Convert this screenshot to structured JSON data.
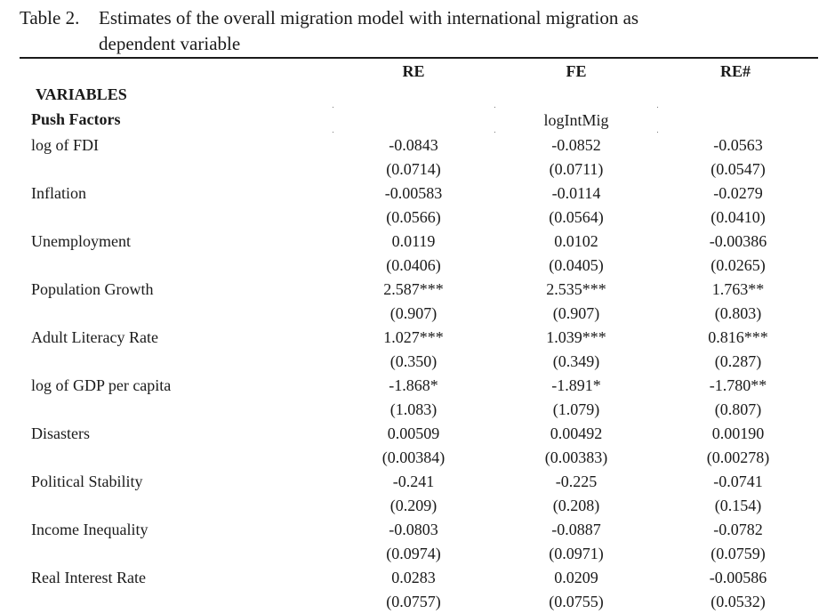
{
  "caption": {
    "number": "Table 2.",
    "line1": "Estimates of the overall migration model with international migration as",
    "line2": "dependent variable"
  },
  "table": {
    "columns": [
      "RE",
      "FE",
      "RE#"
    ],
    "variables_label": "VARIABLES",
    "section_label": "Push Factors",
    "dependent_variable": "logIntMig",
    "rows": [
      {
        "label": "log of FDI",
        "est": [
          "-0.0843",
          "-0.0852",
          "-0.0563"
        ],
        "se": [
          "(0.0714)",
          "(0.0711)",
          "(0.0547)"
        ]
      },
      {
        "label": "Inflation",
        "est": [
          "-0.00583",
          "-0.0114",
          "-0.0279"
        ],
        "se": [
          "(0.0566)",
          "(0.0564)",
          "(0.0410)"
        ]
      },
      {
        "label": "Unemployment",
        "est": [
          "0.0119",
          "0.0102",
          "-0.00386"
        ],
        "se": [
          "(0.0406)",
          "(0.0405)",
          "(0.0265)"
        ]
      },
      {
        "label": "Population Growth",
        "est": [
          "2.587***",
          "2.535***",
          "1.763**"
        ],
        "se": [
          "(0.907)",
          "(0.907)",
          "(0.803)"
        ]
      },
      {
        "label": "Adult Literacy Rate",
        "est": [
          "1.027***",
          "1.039***",
          "0.816***"
        ],
        "se": [
          "(0.350)",
          "(0.349)",
          "(0.287)"
        ]
      },
      {
        "label": "log of GDP per capita",
        "est": [
          "-1.868*",
          "-1.891*",
          "-1.780**"
        ],
        "se": [
          "(1.083)",
          "(1.079)",
          "(0.807)"
        ]
      },
      {
        "label": "Disasters",
        "est": [
          "0.00509",
          "0.00492",
          "0.00190"
        ],
        "se": [
          "(0.00384)",
          "(0.00383)",
          "(0.00278)"
        ]
      },
      {
        "label": "Political Stability",
        "est": [
          "-0.241",
          "-0.225",
          "-0.0741"
        ],
        "se": [
          "(0.209)",
          "(0.208)",
          "(0.154)"
        ]
      },
      {
        "label": "Income Inequality",
        "est": [
          "-0.0803",
          "-0.0887",
          "-0.0782"
        ],
        "se": [
          "(0.0974)",
          "(0.0971)",
          "(0.0759)"
        ]
      },
      {
        "label": "Real Interest Rate",
        "est": [
          "0.0283",
          "0.0209",
          "-0.00586"
        ],
        "se": [
          "(0.0757)",
          "(0.0755)",
          "(0.0532)"
        ]
      }
    ]
  }
}
